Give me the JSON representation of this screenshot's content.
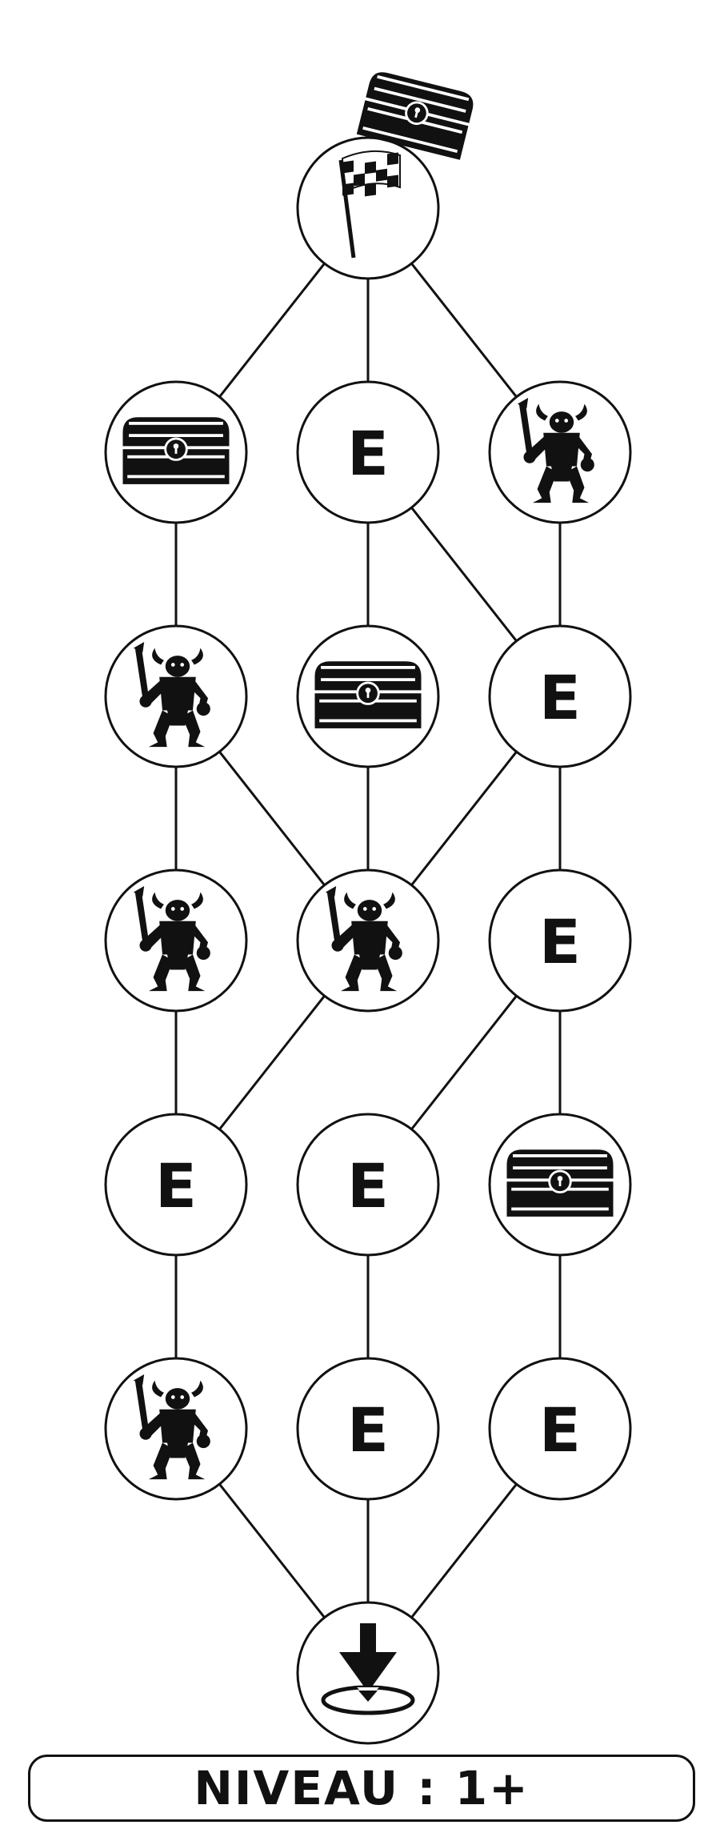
{
  "colors": {
    "ink": "#111111",
    "background": "#ffffff"
  },
  "start": {
    "icon": "checkered-flag-icon",
    "reward_icon": "treasure-chest-icon"
  },
  "rows": [
    [
      {
        "type": "chest",
        "icon": "treasure-chest-icon"
      },
      {
        "type": "event",
        "label": "E"
      },
      {
        "type": "monster",
        "icon": "horned-demon-icon"
      }
    ],
    [
      {
        "type": "monster",
        "icon": "horned-demon-icon"
      },
      {
        "type": "chest",
        "icon": "treasure-chest-icon"
      },
      {
        "type": "event",
        "label": "E"
      }
    ],
    [
      {
        "type": "monster",
        "icon": "horned-demon-icon"
      },
      {
        "type": "monster",
        "icon": "horned-demon-icon"
      },
      {
        "type": "event",
        "label": "E"
      }
    ],
    [
      {
        "type": "event",
        "label": "E"
      },
      {
        "type": "event",
        "label": "E"
      },
      {
        "type": "chest",
        "icon": "treasure-chest-icon"
      }
    ],
    [
      {
        "type": "monster",
        "icon": "horned-demon-icon"
      },
      {
        "type": "event",
        "label": "E"
      },
      {
        "type": "event",
        "label": "E"
      }
    ]
  ],
  "end": {
    "icon": "descend-arrow-icon"
  },
  "level": {
    "label": "NIVEAU : 1+"
  }
}
